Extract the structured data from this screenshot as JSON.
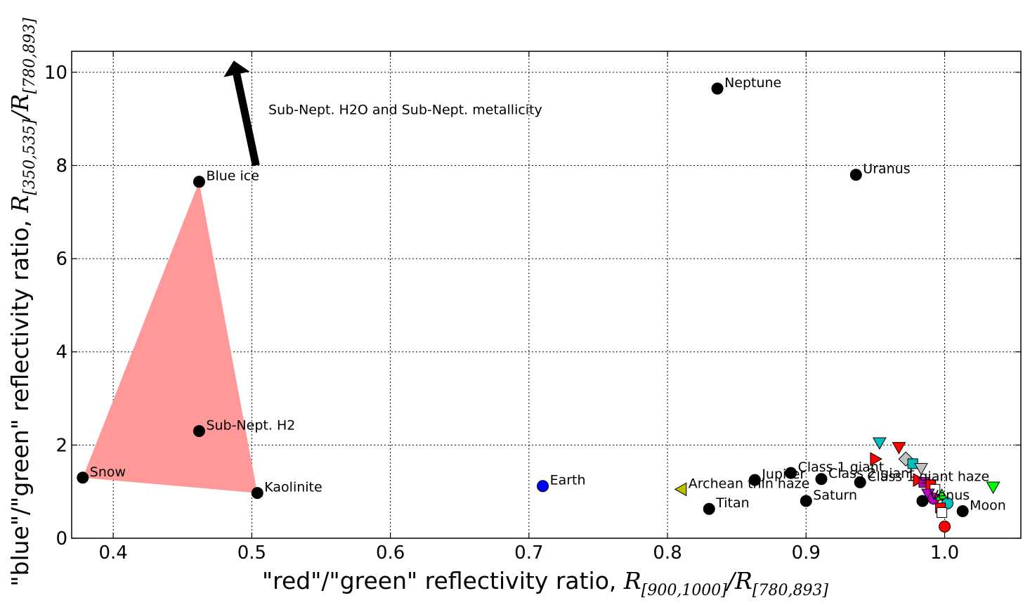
{
  "chart_data": {
    "type": "scatter",
    "title": "",
    "xlabel": {
      "prefix": "\"red\"/\"green\" reflectivity ratio, ",
      "num": "R",
      "num_sub": "[900,1000]",
      "sep": "/",
      "den": "R",
      "den_sub": "[780,893]"
    },
    "ylabel": {
      "prefix": "\"blue\"/\"green\" reflectivity ratio, ",
      "num": "R",
      "num_sub": "[350,535]",
      "sep": "/",
      "den": "R",
      "den_sub": "[780,893]"
    },
    "xlim": [
      0.37,
      1.055
    ],
    "ylim": [
      0,
      10.45
    ],
    "xticks": [
      {
        "v": 0.4,
        "label": "0.4"
      },
      {
        "v": 0.5,
        "label": "0.5"
      },
      {
        "v": 0.6,
        "label": "0.6"
      },
      {
        "v": 0.7,
        "label": "0.7"
      },
      {
        "v": 0.8,
        "label": "0.8"
      },
      {
        "v": 0.9,
        "label": "0.9"
      },
      {
        "v": 1.0,
        "label": "1.0"
      }
    ],
    "yticks": [
      {
        "v": 0,
        "label": "0"
      },
      {
        "v": 2,
        "label": "2"
      },
      {
        "v": 4,
        "label": "4"
      },
      {
        "v": 6,
        "label": "6"
      },
      {
        "v": 8,
        "label": "8"
      },
      {
        "v": 10,
        "label": "10"
      }
    ],
    "grid": true,
    "region": {
      "color": "#ff9999",
      "vertices": [
        [
          0.378,
          1.3
        ],
        [
          0.462,
          7.65
        ],
        [
          0.504,
          0.97
        ]
      ]
    },
    "arrow": {
      "from": [
        0.503,
        8.0
      ],
      "to": [
        0.487,
        10.25
      ],
      "text": "Sub-Nept. H2O and Sub-Nept. metallicity",
      "text_at": [
        0.512,
        9.1
      ]
    },
    "labeled_points": [
      {
        "name": "Snow",
        "x": 0.378,
        "y": 1.3,
        "color": "#000000",
        "shape": "circle"
      },
      {
        "name": "Blue ice",
        "x": 0.462,
        "y": 7.65,
        "color": "#000000",
        "shape": "circle"
      },
      {
        "name": "Sub-Nept. H2",
        "x": 0.462,
        "y": 2.3,
        "color": "#000000",
        "shape": "circle"
      },
      {
        "name": "Kaolinite",
        "x": 0.504,
        "y": 0.97,
        "color": "#000000",
        "shape": "circle"
      },
      {
        "name": "Earth",
        "x": 0.71,
        "y": 1.12,
        "color": "#0000ff",
        "shape": "circle"
      },
      {
        "name": "Archean thin haze",
        "x": 0.81,
        "y": 1.05,
        "color": "#bfbf00",
        "shape": "triangle-left"
      },
      {
        "name": "Titan",
        "x": 0.83,
        "y": 0.63,
        "color": "#000000",
        "shape": "circle"
      },
      {
        "name": "Neptune",
        "x": 0.836,
        "y": 9.65,
        "color": "#000000",
        "shape": "circle"
      },
      {
        "name": "Class 1 giant",
        "x": 0.889,
        "y": 1.4,
        "color": "#000000",
        "shape": "circle"
      },
      {
        "name": "Jupiter",
        "x": 0.863,
        "y": 1.25,
        "color": "#000000",
        "shape": "circle"
      },
      {
        "name": "Saturn",
        "x": 0.9,
        "y": 0.8,
        "color": "#000000",
        "shape": "circle"
      },
      {
        "name": "Class 2 giant",
        "x": 0.911,
        "y": 1.27,
        "color": "#000000",
        "shape": "circle"
      },
      {
        "name": "Uranus",
        "x": 0.936,
        "y": 7.8,
        "color": "#000000",
        "shape": "circle"
      },
      {
        "name": "Class 1 giant haze",
        "x": 0.939,
        "y": 1.2,
        "color": "#000000",
        "shape": "circle"
      },
      {
        "name": "Venus",
        "x": 0.984,
        "y": 0.8,
        "color": "#000000",
        "shape": "circle"
      },
      {
        "name": "Moon",
        "x": 1.013,
        "y": 0.58,
        "color": "#000000",
        "shape": "circle"
      }
    ],
    "other_points": [
      {
        "x": 0.953,
        "y": 2.05,
        "color": "#00bfbf",
        "shape": "triangle-down"
      },
      {
        "x": 0.967,
        "y": 1.95,
        "color": "#ff0000",
        "shape": "triangle-down"
      },
      {
        "x": 0.95,
        "y": 1.7,
        "color": "#ff0000",
        "shape": "triangle-right"
      },
      {
        "x": 0.972,
        "y": 1.7,
        "color": "#c0c0c0",
        "shape": "diamond"
      },
      {
        "x": 0.977,
        "y": 1.6,
        "color": "#00bfbf",
        "shape": "square"
      },
      {
        "x": 0.983,
        "y": 1.5,
        "color": "#c0c0c0",
        "shape": "triangle-down"
      },
      {
        "x": 0.981,
        "y": 1.25,
        "color": "#ff0000",
        "shape": "triangle-right"
      },
      {
        "x": 0.985,
        "y": 1.2,
        "color": "#bf00bf",
        "shape": "square"
      },
      {
        "x": 0.99,
        "y": 1.15,
        "color": "#ff0000",
        "shape": "square"
      },
      {
        "x": 0.993,
        "y": 1.05,
        "color": "#ffffff",
        "shape": "square"
      },
      {
        "x": 0.988,
        "y": 0.95,
        "color": "#bf00bf",
        "shape": "triangle-down"
      },
      {
        "x": 0.992,
        "y": 0.85,
        "color": "#bf00bf",
        "shape": "circle"
      },
      {
        "x": 0.998,
        "y": 0.92,
        "color": "#00ff00",
        "shape": "triangle-up"
      },
      {
        "x": 1.002,
        "y": 0.75,
        "color": "#00bfbf",
        "shape": "circle"
      },
      {
        "x": 0.997,
        "y": 0.65,
        "color": "#ff0000",
        "shape": "square"
      },
      {
        "x": 0.998,
        "y": 0.55,
        "color": "#ffffff",
        "shape": "square"
      },
      {
        "x": 1.0,
        "y": 0.25,
        "color": "#ff0000",
        "shape": "circle"
      },
      {
        "x": 1.035,
        "y": 1.1,
        "color": "#00ff00",
        "shape": "triangle-down"
      }
    ]
  }
}
